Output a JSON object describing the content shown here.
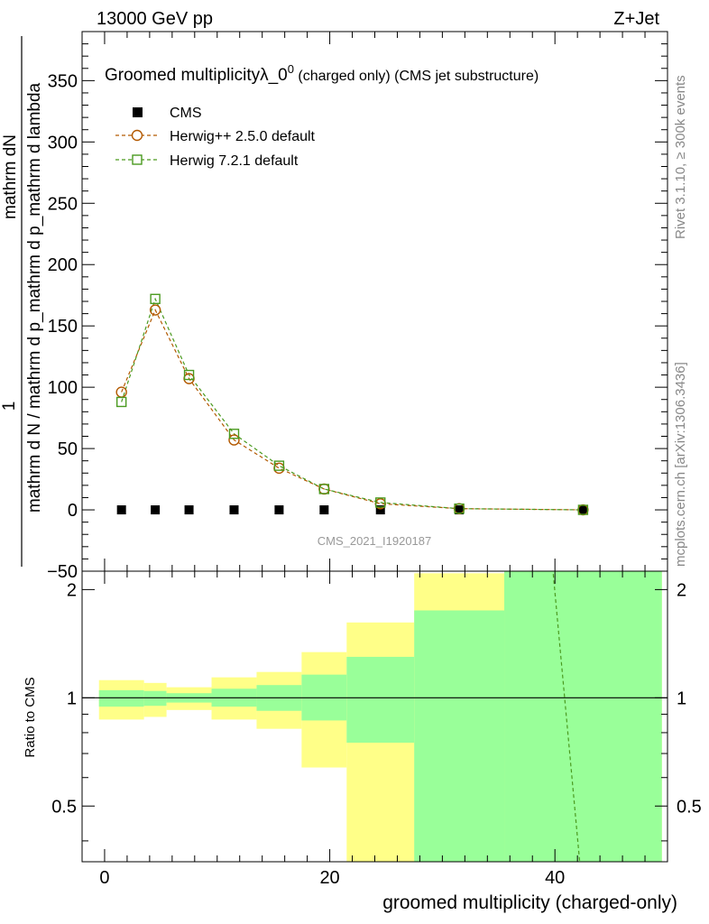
{
  "header": {
    "left_label": "13000 GeV pp",
    "right_label": "Z+Jet"
  },
  "side_labels": {
    "rivet": "Rivet 3.1.10, ≥ 300k events",
    "mcplots": "mcplots.cern.ch [arXiv:1306.3436]"
  },
  "colors": {
    "herwig25": "#b35900",
    "herwig72": "#4a9a1f",
    "band_inner": "#99ff99",
    "band_outer": "#ffff88",
    "data": "#000000"
  },
  "chart_data": [
    {
      "panel": "main",
      "type": "scatter",
      "title_main": "Groomed multiplicityλ_0",
      "title_sup": "0",
      "title_rest": " (charged only) (CMS jet substructure)",
      "ylabel_numerator": "mathrm dN",
      "ylabel_denominator": "mathrm d N / mathrm d p_mathrm d p_mathrm d lambda",
      "ylabel_prefix": "1",
      "xlim": [
        -2,
        50
      ],
      "ylim": [
        -50,
        390
      ],
      "yticks": [
        -50,
        0,
        50,
        100,
        150,
        200,
        250,
        300,
        350
      ],
      "ytick_labels": [
        "−50",
        "0",
        "50",
        "100",
        "150",
        "200",
        "250",
        "300",
        "350"
      ],
      "watermark": "CMS_2021_I1920187",
      "legend": {
        "placement": "top-left",
        "entries": [
          "CMS",
          "Herwig++ 2.5.0 default",
          "Herwig 7.2.1 default"
        ]
      },
      "series": [
        {
          "name": "CMS",
          "marker": "filled-square",
          "x": [
            1.5,
            4.5,
            7.5,
            11.5,
            15.5,
            19.5,
            24.5,
            31.5,
            42.5
          ],
          "y": [
            0,
            0,
            0,
            0,
            0,
            0,
            0,
            0,
            0
          ]
        },
        {
          "name": "Herwig++ 2.5.0 default",
          "marker": "open-circle",
          "x": [
            1.5,
            4.5,
            7.5,
            11.5,
            15.5,
            19.5,
            24.5,
            31.5,
            42.5
          ],
          "y": [
            96,
            163,
            107,
            57,
            34,
            17,
            5,
            1,
            0
          ]
        },
        {
          "name": "Herwig 7.2.1 default",
          "marker": "open-square",
          "x": [
            1.5,
            4.5,
            7.5,
            11.5,
            15.5,
            19.5,
            24.5,
            31.5,
            42.5
          ],
          "y": [
            88,
            172,
            110,
            62,
            36,
            17,
            6,
            1,
            0
          ]
        }
      ]
    },
    {
      "panel": "ratio",
      "type": "area",
      "ylabel": "Ratio to CMS",
      "xlabel": "groomed multiplicity (charged-only)",
      "xlim": [
        -2,
        50
      ],
      "ylim": [
        0.35,
        2.25
      ],
      "xticks": [
        0,
        20,
        40
      ],
      "xtick_labels": [
        "0",
        "20",
        "40"
      ],
      "yticks": [
        0.5,
        1,
        2
      ],
      "ytick_labels": [
        "0.5",
        "1",
        "2"
      ],
      "reference_line": 1,
      "bins": [
        {
          "lo": -0.5,
          "hi": 3.5,
          "inner": [
            0.945,
            1.05
          ],
          "outer": [
            0.87,
            1.12
          ]
        },
        {
          "lo": 3.5,
          "hi": 5.5,
          "inner": [
            0.95,
            1.045
          ],
          "outer": [
            0.885,
            1.1
          ]
        },
        {
          "lo": 5.5,
          "hi": 9.5,
          "inner": [
            0.97,
            1.03
          ],
          "outer": [
            0.925,
            1.07
          ]
        },
        {
          "lo": 9.5,
          "hi": 13.5,
          "inner": [
            0.945,
            1.06
          ],
          "outer": [
            0.87,
            1.14
          ]
        },
        {
          "lo": 13.5,
          "hi": 17.5,
          "inner": [
            0.92,
            1.085
          ],
          "outer": [
            0.82,
            1.18
          ]
        },
        {
          "lo": 17.5,
          "hi": 21.5,
          "inner": [
            0.865,
            1.16
          ],
          "outer": [
            0.64,
            1.34
          ]
        },
        {
          "lo": 21.5,
          "hi": 27.5,
          "inner": [
            0.75,
            1.3
          ],
          "outer": [
            0.3,
            1.62
          ]
        },
        {
          "lo": 27.5,
          "hi": 35.5,
          "inner": [
            0.3,
            1.75
          ],
          "outer": [
            0.3,
            2.22
          ]
        },
        {
          "lo": 35.5,
          "hi": 49.5,
          "inner": [
            0.3,
            2.5
          ],
          "outer": [
            0.3,
            2.5
          ]
        }
      ],
      "series": [
        {
          "name": "Herwig 7.2.1 default ratio",
          "x": [
            39.8,
            42.2
          ],
          "y": [
            2.3,
            0.35
          ]
        }
      ]
    }
  ]
}
